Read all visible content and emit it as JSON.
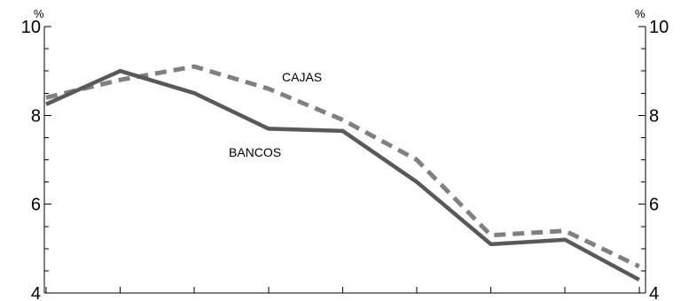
{
  "chart_data": {
    "type": "line",
    "title": "",
    "xlabel": "",
    "ylabel_left": "%",
    "ylabel_right": "%",
    "ylim": [
      4,
      10
    ],
    "yticks": [
      4,
      6,
      8,
      10
    ],
    "y_minor_step": 0.5,
    "x": [
      0,
      1,
      2,
      3,
      4,
      5,
      6,
      7,
      8
    ],
    "grid": false,
    "legend": "inline labels",
    "series": [
      {
        "name": "CAJAS",
        "style": "dashed",
        "color": "#808080",
        "values": [
          8.4,
          8.8,
          9.1,
          8.6,
          7.9,
          7.0,
          5.3,
          5.4,
          4.6
        ]
      },
      {
        "name": "BANCOS",
        "style": "solid",
        "color": "#595959",
        "values": [
          8.25,
          9.0,
          8.5,
          7.7,
          7.65,
          6.5,
          5.1,
          5.2,
          4.3
        ]
      }
    ]
  }
}
